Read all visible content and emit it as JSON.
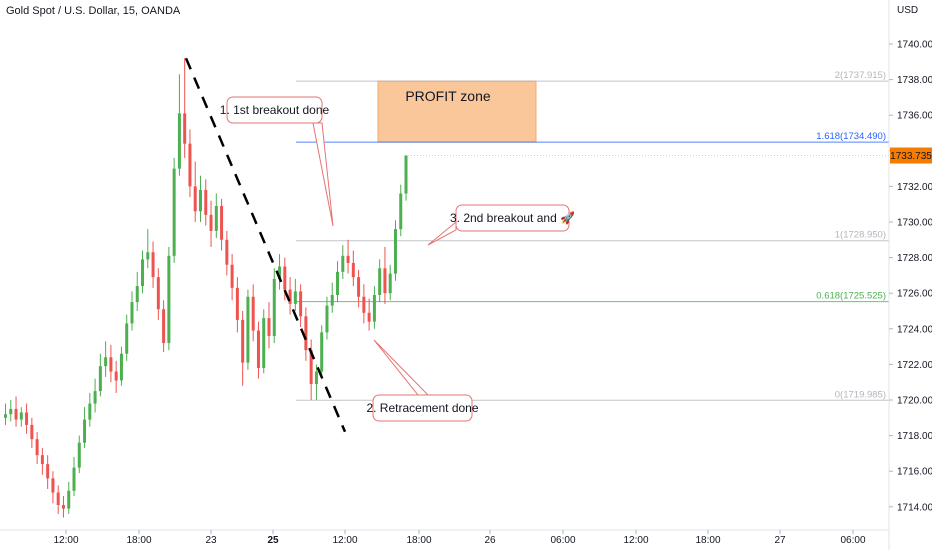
{
  "header": {
    "symbol_title": "Gold Spot / U.S. Dollar, 15, OANDA",
    "currency": "USD"
  },
  "chart_data": {
    "type": "candlestick",
    "title": "Gold Spot / U.S. Dollar, 15, OANDA",
    "y_axis": {
      "unit": "USD",
      "range": [
        1713.2,
        1741.8
      ],
      "ticks": [
        "1740.000",
        "1738.000",
        "1736.000",
        "1734.000",
        "1732.000",
        "1730.000",
        "1728.000",
        "1726.000",
        "1724.000",
        "1722.000",
        "1720.000",
        "1718.000",
        "1716.000",
        "1714.000"
      ],
      "tick_values": [
        1740,
        1738,
        1736,
        1734,
        1732,
        1730,
        1728,
        1726,
        1724,
        1722,
        1720,
        1718,
        1716,
        1714
      ]
    },
    "x_axis": {
      "ticks": [
        "12:00",
        "18:00",
        "23",
        "25",
        "12:00",
        "18:00",
        "26",
        "06:00",
        "12:00",
        "18:00",
        "27",
        "06:00"
      ],
      "bold": [
        false,
        false,
        false,
        true,
        false,
        false,
        false,
        false,
        false,
        false,
        false,
        false
      ]
    },
    "current_price": "1733.735",
    "current_price_value": 1733.735,
    "fib_levels": [
      {
        "label": "2(1737.915)",
        "value": 1737.915,
        "color": "#b2b5be"
      },
      {
        "label": "1.618(1734.490)",
        "value": 1734.49,
        "color": "#2962ff"
      },
      {
        "label": "1(1728.950)",
        "value": 1728.95,
        "color": "#b2b5be"
      },
      {
        "label": "0.618(1725.525)",
        "value": 1725.525,
        "color": "#4caf50"
      },
      {
        "label": "0(1719.985)",
        "value": 1719.985,
        "color": "#b2b5be"
      }
    ],
    "profit_zone": {
      "label": "PROFIT zone",
      "low": 1734.49,
      "high": 1737.915
    },
    "annotations": [
      {
        "text": "1. 1st breakout done"
      },
      {
        "text": "2. Retracement done"
      },
      {
        "text": "3. 2nd breakout and 🚀"
      }
    ],
    "trend_line": {
      "from": 1739.2,
      "to": 1719.0
    },
    "candles": [
      [
        1719.0,
        1719.8,
        1719.2,
        1718.6
      ],
      [
        1719.2,
        1720.0,
        1719.5,
        1718.8
      ],
      [
        1719.5,
        1720.2,
        1718.9,
        1718.5
      ],
      [
        1718.9,
        1719.6,
        1719.3,
        1718.5
      ],
      [
        1719.3,
        1719.8,
        1718.6,
        1718.1
      ],
      [
        1718.6,
        1719.0,
        1717.8,
        1717.3
      ],
      [
        1717.8,
        1718.2,
        1716.9,
        1716.4
      ],
      [
        1716.9,
        1717.3,
        1716.4,
        1715.8
      ],
      [
        1716.4,
        1716.9,
        1715.6,
        1715.0
      ],
      [
        1715.6,
        1716.0,
        1714.8,
        1714.2
      ],
      [
        1714.8,
        1715.2,
        1714.1,
        1713.6
      ],
      [
        1714.1,
        1714.6,
        1713.9,
        1713.4
      ],
      [
        1713.9,
        1715.4,
        1714.9,
        1713.6
      ],
      [
        1714.9,
        1716.8,
        1716.2,
        1714.6
      ],
      [
        1716.2,
        1718.0,
        1717.6,
        1715.9
      ],
      [
        1717.6,
        1719.6,
        1718.9,
        1717.3
      ],
      [
        1718.9,
        1720.4,
        1719.8,
        1718.5
      ],
      [
        1719.8,
        1721.2,
        1720.5,
        1719.3
      ],
      [
        1720.5,
        1722.6,
        1721.9,
        1720.2
      ],
      [
        1721.9,
        1723.3,
        1722.4,
        1721.3
      ],
      [
        1722.4,
        1723.1,
        1721.6,
        1721.0
      ],
      [
        1721.6,
        1722.2,
        1721.1,
        1720.4
      ],
      [
        1721.1,
        1723.0,
        1722.6,
        1720.8
      ],
      [
        1722.6,
        1724.8,
        1724.3,
        1722.2
      ],
      [
        1724.3,
        1726.1,
        1725.5,
        1723.9
      ],
      [
        1725.5,
        1727.2,
        1726.4,
        1725.0
      ],
      [
        1726.4,
        1728.4,
        1727.9,
        1726.0
      ],
      [
        1727.9,
        1729.6,
        1728.3,
        1727.4
      ],
      [
        1728.3,
        1728.9,
        1726.9,
        1726.3
      ],
      [
        1726.9,
        1727.4,
        1725.1,
        1724.5
      ],
      [
        1725.1,
        1725.6,
        1723.2,
        1722.7
      ],
      [
        1723.2,
        1728.6,
        1728.1,
        1722.8
      ],
      [
        1728.1,
        1733.6,
        1733.0,
        1727.7
      ],
      [
        1733.0,
        1738.3,
        1736.1,
        1732.6
      ],
      [
        1736.1,
        1739.2,
        1734.4,
        1733.6
      ],
      [
        1734.4,
        1735.2,
        1732.0,
        1731.4
      ],
      [
        1732.0,
        1733.4,
        1730.6,
        1730.0
      ],
      [
        1730.6,
        1732.6,
        1731.8,
        1730.0
      ],
      [
        1731.8,
        1732.4,
        1730.4,
        1729.8
      ],
      [
        1730.4,
        1731.2,
        1729.5,
        1728.6
      ],
      [
        1729.5,
        1731.6,
        1730.9,
        1729.1
      ],
      [
        1730.9,
        1731.3,
        1729.0,
        1728.4
      ],
      [
        1729.0,
        1729.5,
        1727.6,
        1727.0
      ],
      [
        1727.6,
        1728.2,
        1726.3,
        1725.6
      ],
      [
        1726.3,
        1726.9,
        1724.5,
        1723.8
      ],
      [
        1724.5,
        1725.0,
        1722.1,
        1720.8
      ],
      [
        1722.1,
        1726.2,
        1725.8,
        1721.7
      ],
      [
        1725.8,
        1726.5,
        1723.9,
        1723.3
      ],
      [
        1723.9,
        1724.4,
        1721.8,
        1721.2
      ],
      [
        1721.8,
        1725.1,
        1724.6,
        1721.5
      ],
      [
        1724.6,
        1725.5,
        1723.6,
        1722.9
      ],
      [
        1723.6,
        1727.4,
        1726.8,
        1723.2
      ],
      [
        1726.8,
        1728.2,
        1727.5,
        1726.2
      ],
      [
        1727.5,
        1728.0,
        1726.2,
        1725.6
      ],
      [
        1726.2,
        1726.9,
        1725.4,
        1724.8
      ],
      [
        1725.4,
        1726.8,
        1726.1,
        1725.0
      ],
      [
        1726.1,
        1726.5,
        1724.7,
        1724.1
      ],
      [
        1724.7,
        1725.2,
        1722.8,
        1722.2
      ],
      [
        1722.8,
        1723.4,
        1720.9,
        1720.0
      ],
      [
        1720.9,
        1722.0,
        1721.6,
        1720.0
      ],
      [
        1721.6,
        1724.2,
        1723.8,
        1721.2
      ],
      [
        1723.8,
        1725.8,
        1725.3,
        1723.4
      ],
      [
        1725.3,
        1726.6,
        1725.9,
        1724.9
      ],
      [
        1725.9,
        1727.8,
        1727.2,
        1725.5
      ],
      [
        1727.2,
        1728.7,
        1728.1,
        1726.8
      ],
      [
        1728.1,
        1729.0,
        1727.7,
        1727.1
      ],
      [
        1727.7,
        1728.4,
        1726.9,
        1726.4
      ],
      [
        1726.9,
        1727.3,
        1725.8,
        1725.2
      ],
      [
        1725.8,
        1726.5,
        1724.9,
        1724.3
      ],
      [
        1724.9,
        1725.7,
        1724.4,
        1723.9
      ],
      [
        1724.4,
        1726.4,
        1725.9,
        1724.0
      ],
      [
        1725.9,
        1727.9,
        1727.4,
        1725.5
      ],
      [
        1727.4,
        1728.6,
        1726.0,
        1725.4
      ],
      [
        1726.0,
        1727.6,
        1727.1,
        1725.6
      ],
      [
        1727.1,
        1730.1,
        1729.6,
        1726.7
      ],
      [
        1729.6,
        1732.1,
        1731.6,
        1729.2
      ],
      [
        1731.6,
        1733.735,
        1733.735,
        1731.2
      ]
    ]
  }
}
